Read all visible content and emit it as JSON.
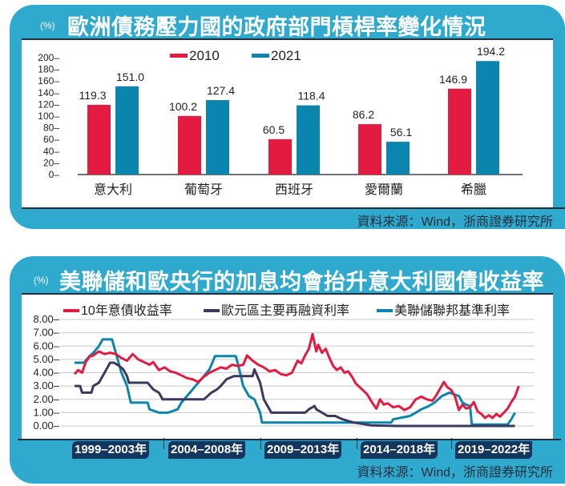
{
  "colors": {
    "panel_blue": "#2fa9cd",
    "series_red": "#e31b41",
    "series_teal": "#0b85ad",
    "series_navy": "#3b3a5e",
    "year_band": "#13355e"
  },
  "panel1": {
    "unit": "(%)",
    "title": "歐洲債務壓力國的政府部門槓桿率變化情況",
    "source": "資料來源：Wind，浙商證券研究所"
  },
  "panel2": {
    "unit": "(%)",
    "title": "美聯儲和歐央行的加息均會抬升意大利國債收益率",
    "source": "資料來源：Wind，浙商證券研究所",
    "year_bands": [
      "1999–2003年",
      "2004–2008年",
      "2009–2013年",
      "2014–2018年",
      "2019–2022年"
    ]
  },
  "chart_data": [
    {
      "type": "bar",
      "title": "歐洲債務壓力國的政府部門槓桿率變化情況",
      "ylabel": "(%)",
      "ylim": [
        0,
        200
      ],
      "yticks": [
        "200–",
        "180–",
        "160–",
        "140–",
        "120–",
        "100–",
        "80–",
        "60–",
        "40–",
        "20–",
        "0–"
      ],
      "ytick_values": [
        200,
        180,
        160,
        140,
        120,
        100,
        80,
        60,
        40,
        20,
        0
      ],
      "categories": [
        "意大利",
        "葡萄牙",
        "西班牙",
        "愛爾蘭",
        "希臘"
      ],
      "legend_position": "top",
      "series": [
        {
          "name": "2010",
          "color": "#e31b41",
          "values": [
            119.3,
            100.2,
            60.5,
            86.2,
            146.9
          ],
          "labels": [
            "119.3",
            "100.2",
            "60.5",
            "86.2",
            "146.9"
          ]
        },
        {
          "name": "2021",
          "color": "#0b85ad",
          "values": [
            151.0,
            127.4,
            118.4,
            56.1,
            194.2
          ],
          "labels": [
            "151.0",
            "127.4",
            "118.4",
            "56.1",
            "194.2"
          ]
        }
      ],
      "grid": false
    },
    {
      "type": "line",
      "title": "美聯儲和歐央行的加息均會抬升意大利國債收益率",
      "ylabel": "(%)",
      "ylim": [
        0,
        8
      ],
      "xlim": [
        1999,
        2022.9
      ],
      "yticks": [
        "8.00–",
        "7.00–",
        "6.00–",
        "5.00–",
        "4.00–",
        "3.00–",
        "2.00–",
        "1.00–",
        "0.00–"
      ],
      "ytick_values": [
        8,
        7,
        6,
        5,
        4,
        3,
        2,
        1,
        0
      ],
      "grid": true,
      "legend_position": "top",
      "series": [
        {
          "name": "10年意債收益率",
          "color": "#e31b41",
          "x": [
            1999.0,
            1999.2,
            1999.4,
            1999.6,
            1999.8,
            2000.0,
            2000.3,
            2000.6,
            2000.9,
            2001.2,
            2001.5,
            2001.8,
            2002.1,
            2002.4,
            2002.7,
            2003.0,
            2003.2,
            2003.5,
            2003.8,
            2004.1,
            2004.4,
            2004.7,
            2005.0,
            2005.3,
            2005.6,
            2005.9,
            2006.2,
            2006.5,
            2006.8,
            2007.1,
            2007.4,
            2007.7,
            2008.0,
            2008.2,
            2008.5,
            2008.8,
            2009.1,
            2009.4,
            2009.7,
            2010.0,
            2010.3,
            2010.6,
            2010.9,
            2011.1,
            2011.3,
            2011.5,
            2011.7,
            2011.9,
            2012.0,
            2012.2,
            2012.4,
            2012.6,
            2012.8,
            2013.0,
            2013.2,
            2013.4,
            2013.6,
            2013.8,
            2014.0,
            2014.3,
            2014.6,
            2014.9,
            2015.1,
            2015.3,
            2015.5,
            2015.7,
            2016.0,
            2016.3,
            2016.6,
            2016.9,
            2017.2,
            2017.5,
            2017.8,
            2018.1,
            2018.3,
            2018.5,
            2018.7,
            2018.9,
            2019.1,
            2019.3,
            2019.5,
            2019.7,
            2019.9,
            2020.1,
            2020.3,
            2020.5,
            2020.7,
            2020.9,
            2021.1,
            2021.3,
            2021.5,
            2021.7,
            2021.9,
            2022.1,
            2022.3,
            2022.5,
            2022.7
          ],
          "values": [
            3.9,
            4.2,
            4.0,
            4.8,
            5.2,
            5.3,
            5.6,
            5.4,
            5.5,
            5.4,
            5.1,
            4.9,
            5.4,
            5.0,
            4.8,
            4.6,
            4.8,
            4.2,
            4.4,
            4.1,
            4.0,
            3.8,
            3.6,
            3.5,
            3.3,
            3.7,
            4.0,
            4.2,
            4.4,
            4.3,
            4.6,
            4.5,
            4.6,
            5.3,
            4.9,
            4.6,
            4.4,
            4.1,
            4.2,
            3.9,
            3.8,
            4.0,
            4.9,
            4.7,
            5.3,
            5.8,
            6.9,
            5.6,
            6.1,
            5.5,
            5.8,
            5.1,
            4.5,
            4.2,
            4.4,
            4.0,
            4.1,
            3.7,
            3.2,
            2.8,
            2.4,
            1.7,
            1.3,
            2.0,
            1.6,
            1.7,
            1.4,
            1.5,
            1.2,
            1.4,
            2.0,
            2.2,
            2.0,
            1.9,
            2.3,
            2.8,
            3.3,
            2.9,
            2.7,
            2.2,
            1.2,
            1.6,
            1.3,
            1.4,
            1.8,
            1.1,
            0.9,
            0.6,
            0.8,
            0.6,
            0.9,
            0.7,
            1.0,
            1.3,
            1.8,
            2.2,
            3.0
          ]
        },
        {
          "name": "歐元區主要再融資利率",
          "color": "#3b3a5e",
          "x": [
            1999.0,
            1999.3,
            1999.4,
            1999.9,
            2000.0,
            2000.3,
            2000.5,
            2000.7,
            2000.9,
            2001.1,
            2001.4,
            2001.6,
            2001.8,
            2001.9,
            2002.9,
            2003.2,
            2003.5,
            2003.7,
            2005.9,
            2006.1,
            2006.3,
            2006.6,
            2006.8,
            2007.1,
            2007.5,
            2008.5,
            2008.6,
            2008.9,
            2009.1,
            2009.3,
            2009.5,
            2011.3,
            2011.5,
            2011.8,
            2011.9,
            2012.5,
            2012.9,
            2013.3,
            2013.9,
            2014.4,
            2014.8,
            2016.2,
            2022.5
          ],
          "values": [
            3.0,
            3.0,
            2.5,
            2.5,
            3.0,
            3.25,
            3.75,
            4.25,
            4.75,
            4.75,
            4.5,
            4.25,
            3.75,
            3.25,
            3.25,
            2.75,
            2.5,
            2.0,
            2.0,
            2.25,
            2.5,
            2.75,
            3.0,
            3.5,
            3.75,
            3.75,
            4.25,
            3.25,
            2.0,
            1.5,
            1.0,
            1.0,
            1.25,
            1.5,
            1.25,
            0.75,
            0.75,
            0.5,
            0.25,
            0.15,
            0.05,
            0.0,
            0.0
          ]
        },
        {
          "name": "美聯儲聯邦基準利率",
          "color": "#0b85ad",
          "x": [
            1999.0,
            1999.5,
            1999.8,
            2000.0,
            2000.3,
            2000.5,
            2001.0,
            2001.3,
            2001.5,
            2001.8,
            2002.0,
            2002.9,
            2003.0,
            2003.5,
            2004.0,
            2004.5,
            2004.7,
            2005.0,
            2005.3,
            2005.6,
            2005.9,
            2006.2,
            2006.5,
            2007.6,
            2007.7,
            2008.0,
            2008.3,
            2008.6,
            2008.9,
            2009.0,
            2015.9,
            2016.0,
            2016.9,
            2017.2,
            2017.5,
            2017.9,
            2018.2,
            2018.6,
            2019.0,
            2019.5,
            2019.7,
            2019.9,
            2020.1,
            2020.2,
            2022.1,
            2022.3,
            2022.5
          ],
          "values": [
            4.75,
            4.75,
            5.25,
            5.5,
            6.0,
            6.5,
            6.5,
            5.0,
            4.0,
            3.0,
            1.75,
            1.75,
            1.25,
            1.0,
            1.0,
            1.25,
            1.75,
            2.25,
            2.75,
            3.25,
            3.75,
            4.25,
            5.25,
            5.25,
            4.75,
            3.0,
            2.25,
            2.0,
            1.0,
            0.25,
            0.25,
            0.5,
            0.75,
            1.0,
            1.25,
            1.5,
            1.75,
            2.25,
            2.5,
            2.25,
            1.75,
            1.6,
            1.5,
            0.1,
            0.1,
            0.5,
            1.0
          ]
        }
      ]
    }
  ]
}
